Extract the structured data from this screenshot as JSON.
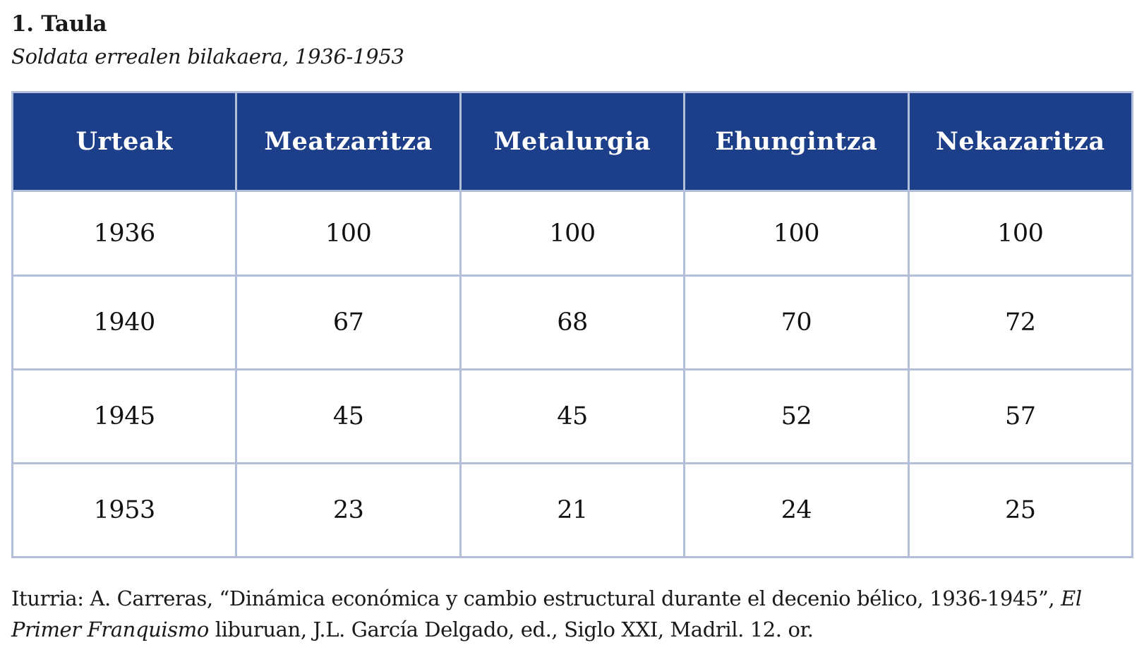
{
  "document": {
    "title": "1. Taula",
    "subtitle": "Soldata errealen bilakaera, 1936-1953"
  },
  "table": {
    "headers": [
      "Urteak",
      "Meatzaritza",
      "Metalurgia",
      "Ehungintza",
      "Nekazaritza"
    ],
    "rows": [
      [
        "1936",
        "100",
        "100",
        "100",
        "100"
      ],
      [
        "1940",
        "67",
        "68",
        "70",
        "72"
      ],
      [
        "1945",
        "45",
        "45",
        "52",
        "57"
      ],
      [
        "1953",
        "23",
        "21",
        "24",
        "25"
      ]
    ]
  },
  "source": {
    "prefix": "Iturria: A. Carreras, “Dinámica económica y cambio estructural durante el decenio bélico, 1936-1945”, ",
    "book_title": "El Primer Franquismo",
    "suffix": " liburuan, J.L. García Delgado, ed., Siglo XXI, Madril. 12. or."
  },
  "colors": {
    "header_background": "#1d3f8a",
    "header_text": "#ffffff",
    "grid_border": "#b3bfd8"
  }
}
